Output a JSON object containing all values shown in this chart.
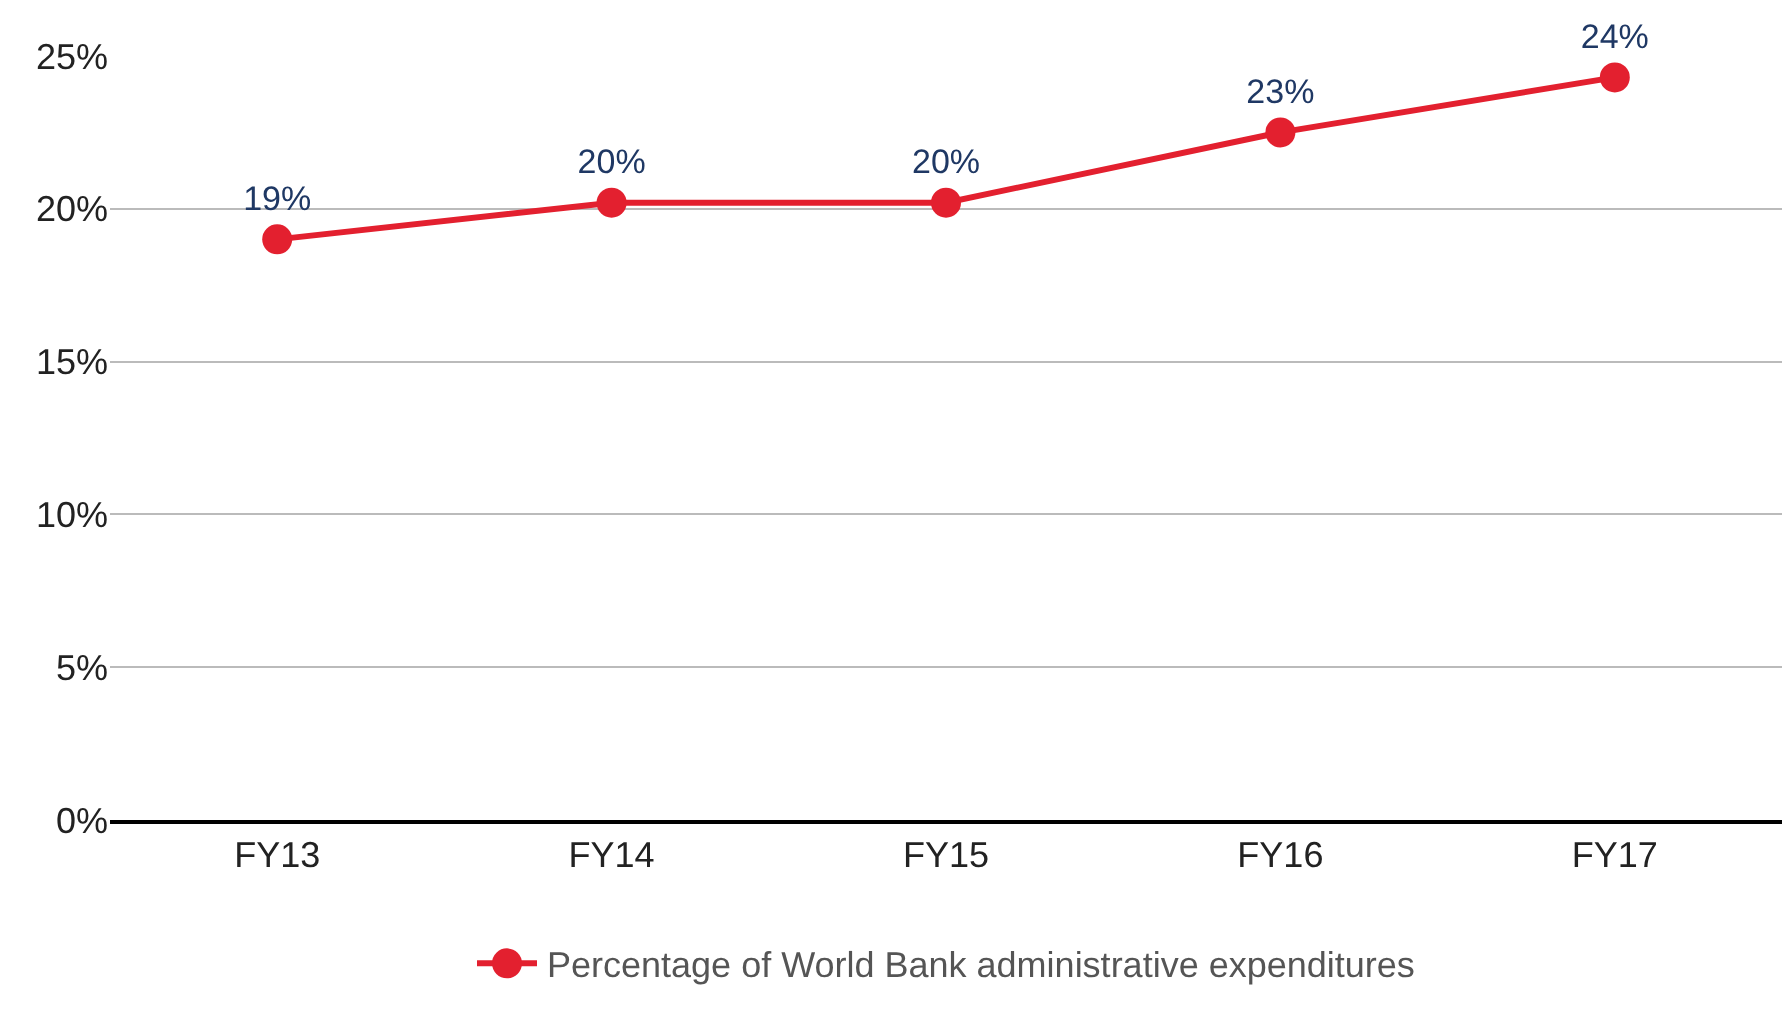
{
  "chart_data": {
    "type": "line",
    "categories": [
      "FY13",
      "FY14",
      "FY15",
      "FY16",
      "FY17"
    ],
    "series": [
      {
        "name": "Percentage of World Bank administrative expenditures",
        "color": "#e3202f",
        "values": [
          19.0,
          20.2,
          20.2,
          22.5,
          24.3
        ],
        "value_labels": [
          "19%",
          "20%",
          "20%",
          "23%",
          "24%"
        ]
      }
    ],
    "ylim": [
      0,
      25
    ],
    "yticks": [
      {
        "value": 0,
        "label": "0%"
      },
      {
        "value": 5,
        "label": "5%"
      },
      {
        "value": 10,
        "label": "10%"
      },
      {
        "value": 15,
        "label": "15%"
      },
      {
        "value": 20,
        "label": "20%"
      },
      {
        "value": 25,
        "label": "25%"
      }
    ],
    "grid": "y",
    "legend": "bottom",
    "marker": "circle",
    "line_style": "solid"
  }
}
